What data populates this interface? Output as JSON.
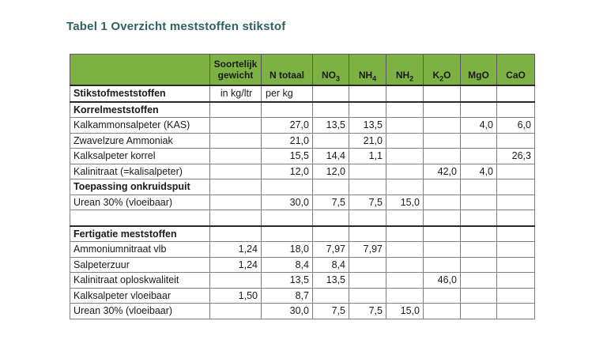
{
  "page": {
    "title": "Tabel 1 Overzicht meststoffen stikstof"
  },
  "colors": {
    "header_green": "#7EB143",
    "title_teal": "#2D6265",
    "grid_line": "#7F7F7F",
    "strong_line": "#2A2A2A"
  },
  "table": {
    "column_keys": [
      "soortelijk_gewicht",
      "n_totaal",
      "no3",
      "nh4",
      "nh2",
      "k2o",
      "mgo",
      "cao"
    ],
    "columns": [
      {
        "pre": ""
      },
      {
        "pre": "Soortelijk gewicht"
      },
      {
        "pre": "N totaal"
      },
      {
        "pre": "NO",
        "sub": "3"
      },
      {
        "pre": "NH",
        "sub": "4"
      },
      {
        "pre": "NH",
        "sub": "2"
      },
      {
        "pre": "K",
        "sub": "2",
        "post": "O"
      },
      {
        "pre": "MgO"
      },
      {
        "pre": "CaO"
      }
    ],
    "rows": [
      {
        "label": "Stikstofmeststoffen",
        "bold": true,
        "cells": [
          "in kg/ltr",
          "per kg",
          "",
          "",
          "",
          "",
          "",
          ""
        ]
      },
      {
        "label": "Korrelmeststoffen",
        "bold": true,
        "cells": [
          "",
          "",
          "",
          "",
          "",
          "",
          "",
          ""
        ]
      },
      {
        "label": "Kalkammonsalpeter (KAS)",
        "bold": false,
        "cells": [
          "",
          "27,0",
          "13,5",
          "13,5",
          "",
          "",
          "4,0",
          "6,0"
        ]
      },
      {
        "label": "Zwavelzure Ammoniak",
        "bold": false,
        "cells": [
          "",
          "21,0",
          "",
          "21,0",
          "",
          "",
          "",
          ""
        ]
      },
      {
        "label": "Kalksalpeter korrel",
        "bold": false,
        "cells": [
          "",
          "15,5",
          "14,4",
          "1,1",
          "",
          "",
          "",
          "26,3"
        ]
      },
      {
        "label": "Kalinitraat (=kalisalpeter)",
        "bold": false,
        "cells": [
          "",
          "12,0",
          "12,0",
          "",
          "",
          "42,0",
          "4,0",
          ""
        ]
      },
      {
        "label": "Toepassing onkruidspuit",
        "bold": true,
        "cells": [
          "",
          "",
          "",
          "",
          "",
          "",
          "",
          ""
        ]
      },
      {
        "label": "Urean 30% (vloeibaar)",
        "bold": false,
        "cells": [
          "",
          "30,0",
          "7,5",
          "7,5",
          "15,0",
          "",
          "",
          ""
        ]
      },
      {
        "label": "",
        "bold": false,
        "cells": [
          "",
          "",
          "",
          "",
          "",
          "",
          "",
          ""
        ]
      },
      {
        "label": "Fertigatie meststoffen",
        "bold": true,
        "cells": [
          "",
          "",
          "",
          "",
          "",
          "",
          "",
          ""
        ]
      },
      {
        "label": "Ammoniumnitraat vlb",
        "bold": false,
        "cells": [
          "1,24",
          "18,0",
          "7,97",
          "7,97",
          "",
          "",
          "",
          ""
        ]
      },
      {
        "label": "Salpeterzuur",
        "bold": false,
        "cells": [
          "1,24",
          "8,4",
          "8,4",
          "",
          "",
          "",
          "",
          ""
        ]
      },
      {
        "label": "Kalinitraat oploskwaliteit",
        "bold": false,
        "cells": [
          "",
          "13,5",
          "13,5",
          "",
          "",
          "46,0",
          "",
          ""
        ]
      },
      {
        "label": "Kalksalpeter vloeibaar",
        "bold": false,
        "cells": [
          "1,50",
          "8,7",
          "",
          "",
          "",
          "",
          "",
          ""
        ]
      },
      {
        "label": "Urean 30% (vloeibaar)",
        "bold": false,
        "cells": [
          "",
          "30,0",
          "7,5",
          "7,5",
          "15,0",
          "",
          "",
          ""
        ]
      }
    ]
  }
}
